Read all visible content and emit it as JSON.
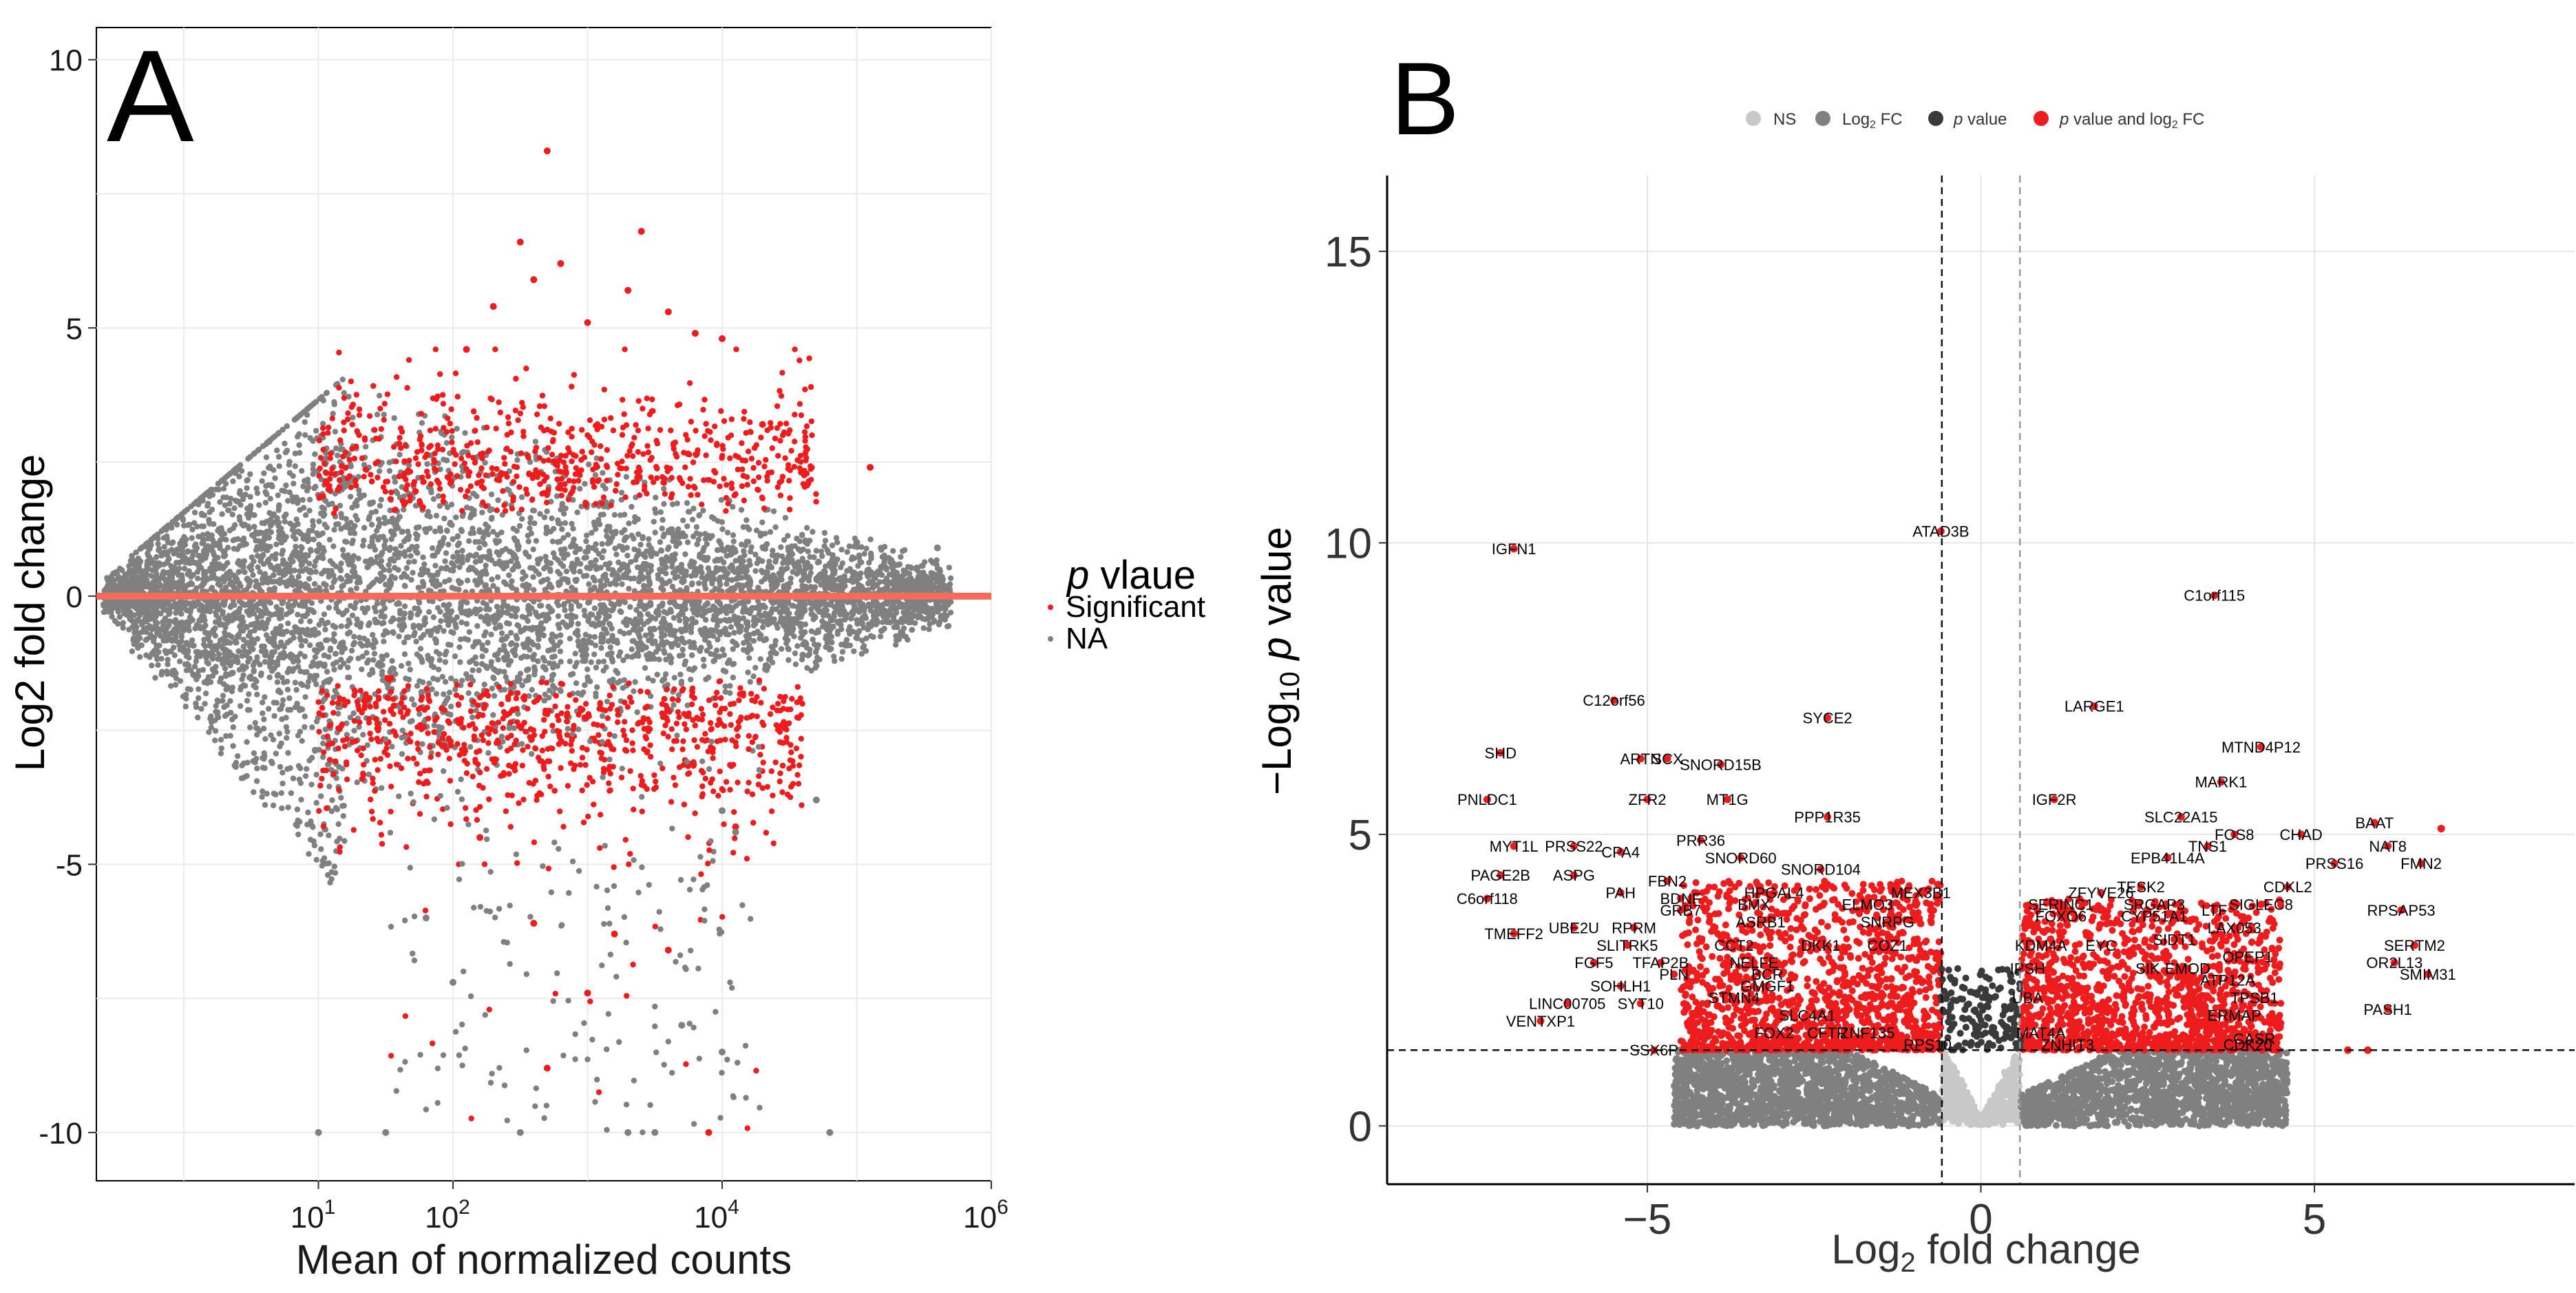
{
  "chart_data": [
    {
      "panel": "A",
      "type": "scatter",
      "title": "",
      "xlabel": "Mean of normalized counts",
      "ylabel": "Log2 fold change",
      "xscale": "log10",
      "xlim_log10": [
        -0.65,
        6.0
      ],
      "ylim": [
        -10.9,
        10.6
      ],
      "xticks": [
        {
          "label": "10",
          "exp": "1",
          "value": 10
        },
        {
          "label": "10",
          "exp": "2",
          "value": 100
        },
        {
          "label": "10",
          "exp": "4",
          "value": 10000
        },
        {
          "label": "10",
          "exp": "6",
          "value": 1000000
        }
      ],
      "yticks": [
        {
          "label": "10",
          "value": 10
        },
        {
          "label": "5",
          "value": 5
        },
        {
          "label": "0",
          "value": 0
        },
        {
          "label": "-5",
          "value": -5
        },
        {
          "label": "-10",
          "value": -10
        }
      ],
      "reference_line": {
        "y": 0,
        "color": "#f26b5b"
      },
      "grid": true,
      "legend": {
        "title_p": "p",
        "title_rest": " vlaue",
        "placement": "right",
        "entries": [
          {
            "name": "Significant",
            "color": "#ee1c1c"
          },
          {
            "name": "NA",
            "color": "#808080"
          }
        ]
      },
      "series": [
        {
          "name": "Significant",
          "color": "#ee1c1c",
          "points": [
            [
              2.1,
              4.6
            ],
            [
              2.3,
              5.4
            ],
            [
              2.5,
              6.6
            ],
            [
              2.6,
              5.9
            ],
            [
              2.8,
              6.2
            ],
            [
              3.0,
              5.1
            ],
            [
              3.3,
              5.7
            ],
            [
              3.4,
              6.8
            ],
            [
              3.6,
              5.3
            ],
            [
              3.8,
              4.9
            ],
            [
              2.7,
              8.3
            ],
            [
              4.0,
              4.8
            ],
            [
              4.3,
              3.2
            ],
            [
              5.1,
              2.4
            ],
            [
              2.2,
              -4.5
            ],
            [
              2.6,
              -6.1
            ],
            [
              2.7,
              -8.8
            ],
            [
              3.0,
              -7.4
            ],
            [
              3.2,
              -6.3
            ],
            [
              3.6,
              -6.6
            ],
            [
              4.1,
              -4.3
            ],
            [
              3.9,
              -10.0
            ]
          ]
        },
        {
          "name": "NA",
          "color": "#808080",
          "points": [
            [
              5.6,
              0.9
            ],
            [
              5.4,
              -0.4
            ],
            [
              5.0,
              1.0
            ],
            [
              4.6,
              -1.1
            ],
            [
              4.0,
              -4.0
            ],
            [
              4.7,
              -3.8
            ],
            [
              4.8,
              -10.0
            ],
            [
              4.1,
              -4.4
            ],
            [
              3.7,
              -8.0
            ],
            [
              1.0,
              -10.0
            ],
            [
              1.5,
              -10.0
            ],
            [
              2.5,
              -10.0
            ],
            [
              3.3,
              -10.0
            ],
            [
              3.5,
              -10.0
            ],
            [
              4.0,
              -8.5
            ],
            [
              2.0,
              -7.2
            ],
            [
              1.8,
              -6.0
            ]
          ]
        }
      ],
      "bands": [
        {
          "name": "NA",
          "color": "#808080",
          "summary": "dense cloud around 0, widening to about ±4 near 10^1.2 and narrowing toward 10^5.5"
        },
        {
          "name": "Significant",
          "color": "#ee1c1c",
          "summary": "upper arm from about +1.5 to +4.6 and lower arm from about -1.5 to -5 between 10^1 and 10^4.7"
        }
      ]
    },
    {
      "panel": "B",
      "type": "scatter",
      "title": "",
      "xlabel": "Log2 fold change",
      "ylabel": "-Log10 p value",
      "xlim": [
        -8.9,
        8.9
      ],
      "ylim": [
        -1.0,
        16.3
      ],
      "xticks": [
        {
          "label": "-5",
          "value": -5
        },
        {
          "label": "0",
          "value": 0
        },
        {
          "label": "5",
          "value": 5
        }
      ],
      "yticks": [
        {
          "label": "0",
          "value": 0
        },
        {
          "label": "5",
          "value": 5
        },
        {
          "label": "10",
          "value": 10
        },
        {
          "label": "15",
          "value": 15
        }
      ],
      "fc_cutoffs": [
        -0.585,
        0.585
      ],
      "p_cutoff": 1.3,
      "grid": true,
      "legend": {
        "placement": "top",
        "entries": [
          {
            "name": "NS",
            "color": "#c8c8c8"
          },
          {
            "name": "Log2 FC",
            "color": "#808080"
          },
          {
            "name": "p value",
            "color": "#3a3a3a"
          },
          {
            "name": "p value and log2 FC",
            "color": "#ee1c1c"
          }
        ]
      },
      "labeled_points": [
        {
          "gene": "ATAD3B",
          "x": -0.6,
          "y": 10.2
        },
        {
          "gene": "IGFN1",
          "x": -7.0,
          "y": 9.9
        },
        {
          "gene": "C1orf115",
          "x": 3.5,
          "y": 9.1
        },
        {
          "gene": "C12orf56",
          "x": -5.5,
          "y": 7.3
        },
        {
          "gene": "LARGE1",
          "x": 1.7,
          "y": 7.2
        },
        {
          "gene": "SYCE2",
          "x": -2.3,
          "y": 7.0
        },
        {
          "gene": "SHD",
          "x": -7.2,
          "y": 6.4
        },
        {
          "gene": "ARTN",
          "x": -5.1,
          "y": 6.3
        },
        {
          "gene": "SCX",
          "x": -4.7,
          "y": 6.3
        },
        {
          "gene": "SNORD15B",
          "x": -3.9,
          "y": 6.2
        },
        {
          "gene": "MTND4P12",
          "x": 4.2,
          "y": 6.5
        },
        {
          "gene": "MARK1",
          "x": 3.6,
          "y": 5.9
        },
        {
          "gene": "PNLDC1",
          "x": -7.4,
          "y": 5.6
        },
        {
          "gene": "ZFR2",
          "x": -5.0,
          "y": 5.6
        },
        {
          "gene": "MT1G",
          "x": -3.8,
          "y": 5.6
        },
        {
          "gene": "IGF2R",
          "x": 1.1,
          "y": 5.6
        },
        {
          "gene": "PPP1R35",
          "x": -2.3,
          "y": 5.3
        },
        {
          "gene": "SLC22A15",
          "x": 3.0,
          "y": 5.3
        },
        {
          "gene": "PRR36",
          "x": -4.2,
          "y": 4.9
        },
        {
          "gene": "FOS8",
          "x": 3.8,
          "y": 5.0
        },
        {
          "gene": "CHAD",
          "x": 4.8,
          "y": 5.0
        },
        {
          "gene": "BAAT",
          "x": 5.9,
          "y": 5.2
        },
        {
          "gene": "TNS1",
          "x": 3.4,
          "y": 4.8
        },
        {
          "gene": "NAT8",
          "x": 6.1,
          "y": 4.8
        },
        {
          "gene": "MYT1L",
          "x": -7.0,
          "y": 4.8
        },
        {
          "gene": "PRSS22",
          "x": -6.1,
          "y": 4.8
        },
        {
          "gene": "CPA4",
          "x": -5.4,
          "y": 4.7
        },
        {
          "gene": "SNORD60",
          "x": -3.6,
          "y": 4.6
        },
        {
          "gene": "EPB41L4A",
          "x": 2.8,
          "y": 4.6
        },
        {
          "gene": "PRSS16",
          "x": 5.3,
          "y": 4.5
        },
        {
          "gene": "FMN2",
          "x": 6.6,
          "y": 4.5
        },
        {
          "gene": "SNORD104",
          "x": -2.4,
          "y": 4.4
        },
        {
          "gene": "ASPG",
          "x": -6.1,
          "y": 4.3
        },
        {
          "gene": "FBN2",
          "x": -4.7,
          "y": 4.2
        },
        {
          "gene": "PAGE2B",
          "x": -7.2,
          "y": 4.3
        },
        {
          "gene": "PAH",
          "x": -5.4,
          "y": 4.0
        },
        {
          "gene": "HPGAL4",
          "x": -3.1,
          "y": 4.0
        },
        {
          "gene": "MEX3B1",
          "x": -0.9,
          "y": 4.0
        },
        {
          "gene": "ZFYVE26",
          "x": 1.8,
          "y": 4.0
        },
        {
          "gene": "TESK2",
          "x": 2.4,
          "y": 4.1
        },
        {
          "gene": "CDKL2",
          "x": 4.6,
          "y": 4.1
        },
        {
          "gene": "C6orf118",
          "x": -7.4,
          "y": 3.9
        },
        {
          "gene": "BDNF",
          "x": -4.5,
          "y": 3.9
        },
        {
          "gene": "SERINC1",
          "x": 1.2,
          "y": 3.8
        },
        {
          "gene": "SRGAP3",
          "x": 2.6,
          "y": 3.8
        },
        {
          "gene": "SIGLEC8",
          "x": 4.2,
          "y": 3.8
        },
        {
          "gene": "RPSAP53",
          "x": 6.3,
          "y": 3.7
        },
        {
          "gene": "BMX",
          "x": -3.4,
          "y": 3.8
        },
        {
          "gene": "ELMO3",
          "x": -1.7,
          "y": 3.8
        },
        {
          "gene": "GRB7",
          "x": -4.5,
          "y": 3.7
        },
        {
          "gene": "FOXO6",
          "x": 1.2,
          "y": 3.6
        },
        {
          "gene": "CYP51A1",
          "x": 2.6,
          "y": 3.6
        },
        {
          "gene": "LTF",
          "x": 3.5,
          "y": 3.7
        },
        {
          "gene": "UBE2U",
          "x": -6.1,
          "y": 3.4
        },
        {
          "gene": "RPRM",
          "x": -5.2,
          "y": 3.4
        },
        {
          "gene": "ASRB1",
          "x": -3.3,
          "y": 3.5
        },
        {
          "gene": "SNRPG",
          "x": -1.4,
          "y": 3.5
        },
        {
          "gene": "LAX053",
          "x": 3.8,
          "y": 3.4
        },
        {
          "gene": "TMEFF2",
          "x": -7.0,
          "y": 3.3
        },
        {
          "gene": "SLITRK5",
          "x": -5.3,
          "y": 3.1
        },
        {
          "gene": "CCT2",
          "x": -3.7,
          "y": 3.1
        },
        {
          "gene": "DKK1",
          "x": -2.4,
          "y": 3.1
        },
        {
          "gene": "COZ1",
          "x": -1.4,
          "y": 3.1
        },
        {
          "gene": "KDM4A",
          "x": 0.9,
          "y": 3.1
        },
        {
          "gene": "EYC",
          "x": 1.8,
          "y": 3.1
        },
        {
          "gene": "SIDT1",
          "x": 2.9,
          "y": 3.2
        },
        {
          "gene": "SERTM2",
          "x": 6.5,
          "y": 3.1
        },
        {
          "gene": "FGF5",
          "x": -5.8,
          "y": 2.8
        },
        {
          "gene": "TFAP2B",
          "x": -4.8,
          "y": 2.8
        },
        {
          "gene": "NELFE",
          "x": -3.4,
          "y": 2.8
        },
        {
          "gene": "IPSH",
          "x": 0.7,
          "y": 2.7
        },
        {
          "gene": "OPEP1",
          "x": 4.0,
          "y": 2.9
        },
        {
          "gene": "OR2L13",
          "x": 6.2,
          "y": 2.8
        },
        {
          "gene": "BCR",
          "x": -3.2,
          "y": 2.6
        },
        {
          "gene": "PLN",
          "x": -4.6,
          "y": 2.6
        },
        {
          "gene": "SIK",
          "x": 2.5,
          "y": 2.7
        },
        {
          "gene": "EMOD",
          "x": 3.1,
          "y": 2.7
        },
        {
          "gene": "SMIM31",
          "x": 6.7,
          "y": 2.6
        },
        {
          "gene": "SOHLH1",
          "x": -5.4,
          "y": 2.4
        },
        {
          "gene": "GMGF1",
          "x": -3.2,
          "y": 2.4
        },
        {
          "gene": "ATP12A",
          "x": 3.7,
          "y": 2.5
        },
        {
          "gene": "SYT10",
          "x": -5.1,
          "y": 2.1
        },
        {
          "gene": "STMN4",
          "x": -3.7,
          "y": 2.2
        },
        {
          "gene": "LINC00705",
          "x": -6.2,
          "y": 2.1
        },
        {
          "gene": "UBA",
          "x": 0.7,
          "y": 2.2
        },
        {
          "gene": "TPSB1",
          "x": 4.1,
          "y": 2.2
        },
        {
          "gene": "PASH1",
          "x": 6.1,
          "y": 2.0
        },
        {
          "gene": "SLC4A1",
          "x": -2.6,
          "y": 1.9
        },
        {
          "gene": "ERMAP",
          "x": 3.8,
          "y": 1.9
        },
        {
          "gene": "VENTXP1",
          "x": -6.6,
          "y": 1.8
        },
        {
          "gene": "MAT4A",
          "x": 0.9,
          "y": 1.6
        },
        {
          "gene": "ZNF135",
          "x": -1.7,
          "y": 1.6
        },
        {
          "gene": "CASR",
          "x": 4.1,
          "y": 1.5
        },
        {
          "gene": "FOX2",
          "x": -3.1,
          "y": 1.6
        },
        {
          "gene": "CFTR",
          "x": -2.3,
          "y": 1.6
        },
        {
          "gene": "SSX6P",
          "x": -4.9,
          "y": 1.3
        },
        {
          "gene": "RPS10",
          "x": -0.8,
          "y": 1.4
        },
        {
          "gene": "ZNHIT3",
          "x": 1.3,
          "y": 1.4
        },
        {
          "gene": "CDK20",
          "x": 4.0,
          "y": 1.4
        }
      ],
      "extra_points": [
        {
          "x": 6.9,
          "y": 5.1,
          "color": "#ee1c1c"
        },
        {
          "x": 5.5,
          "y": 1.3,
          "color": "#ee1c1c"
        },
        {
          "x": 5.8,
          "y": 1.3,
          "color": "#ee1c1c"
        }
      ],
      "bands": [
        {
          "name": "NS",
          "color": "#c8c8c8",
          "summary": "light-grey V near x=0, y 0 to 1.3"
        },
        {
          "name": "Log2 FC",
          "color": "#808080",
          "summary": "grey wings for |x| 0.6 to 4, y 0 to 1.3"
        },
        {
          "name": "p value and log2 FC",
          "color": "#ee1c1c",
          "summary": "red clouds for |x| 0.6 to 4.5, y 1.3 to 4"
        }
      ]
    }
  ],
  "panels": {
    "A": {
      "letter": "A"
    },
    "B": {
      "letter": "B"
    }
  }
}
